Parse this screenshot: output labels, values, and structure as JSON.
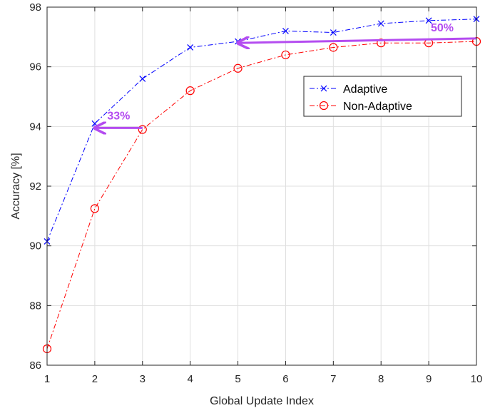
{
  "chart_data": {
    "type": "line",
    "xlabel": "Global Update Index",
    "ylabel": "Accuracy [%]",
    "xlim": [
      1,
      10
    ],
    "ylim": [
      86,
      98
    ],
    "xticks": [
      1,
      2,
      3,
      4,
      5,
      6,
      7,
      8,
      9,
      10
    ],
    "yticks": [
      86,
      88,
      90,
      92,
      94,
      96,
      98
    ],
    "grid": true,
    "legend_position": "upper-right",
    "x": [
      1,
      2,
      3,
      4,
      5,
      6,
      7,
      8,
      9,
      10
    ],
    "series": [
      {
        "name": "Adaptive",
        "values": [
          90.15,
          94.1,
          95.6,
          96.65,
          96.85,
          97.2,
          97.15,
          97.45,
          97.55,
          97.6
        ],
        "color": "#0000ff",
        "marker": "x",
        "line_style": "dash-dot"
      },
      {
        "name": "Non-Adaptive",
        "values": [
          86.55,
          91.25,
          93.9,
          95.2,
          95.95,
          96.4,
          96.65,
          96.8,
          96.8,
          96.85
        ],
        "color": "#ff0000",
        "marker": "o",
        "line_style": "dash-dot"
      }
    ],
    "annotations": [
      {
        "text": "33%",
        "arrow_from": [
          3,
          93.95
        ],
        "arrow_to": [
          2,
          93.95
        ],
        "color": "#b44cf0"
      },
      {
        "text": "50%",
        "arrow_from": [
          10,
          96.95
        ],
        "arrow_to": [
          5,
          96.8
        ],
        "color": "#b44cf0"
      }
    ]
  }
}
